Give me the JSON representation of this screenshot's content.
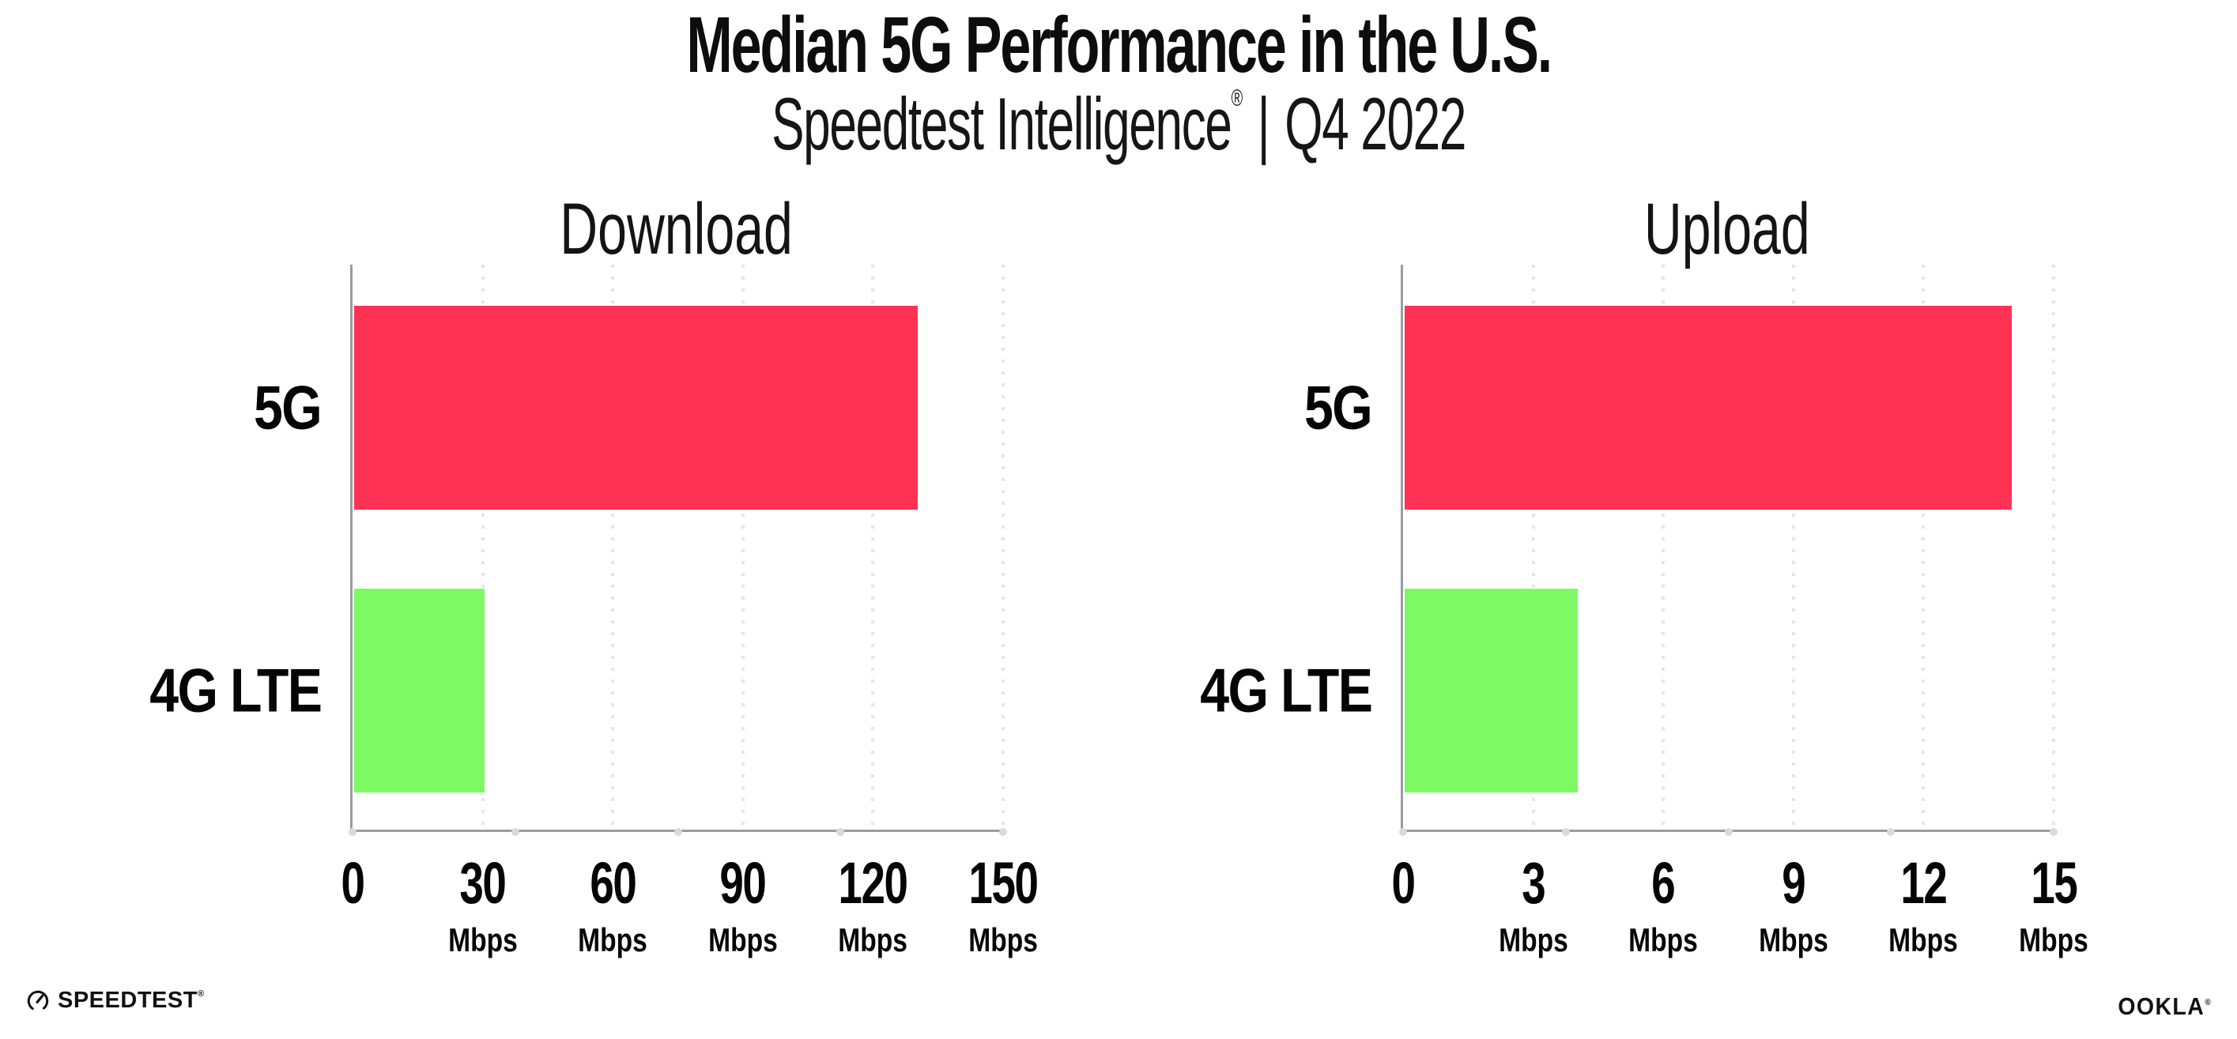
{
  "header": {
    "title": "Median 5G Performance in the U.S.",
    "subtitle": {
      "brand": "Speedtest Intelligence",
      "mark": "®",
      "sep": "|",
      "quarter": "Q4 2022"
    }
  },
  "chart_data": [
    {
      "type": "bar",
      "orientation": "horizontal",
      "title": "Download",
      "categories": [
        "5G",
        "4G LTE"
      ],
      "values": [
        130,
        30
      ],
      "unit": "Mbps",
      "xlabel": "",
      "ylabel": "",
      "xlim": [
        0,
        150
      ],
      "xticks": [
        0,
        30,
        60,
        90,
        120,
        150
      ],
      "bar_colors": [
        "#ff3254",
        "#7dfa63"
      ],
      "grid": "vertical-dotted",
      "legend": "none"
    },
    {
      "type": "bar",
      "orientation": "horizontal",
      "title": "Upload",
      "categories": [
        "5G",
        "4G LTE"
      ],
      "values": [
        14,
        4
      ],
      "unit": "Mbps",
      "xlabel": "",
      "ylabel": "",
      "xlim": [
        0,
        15
      ],
      "xticks": [
        0,
        3,
        6,
        9,
        12,
        15
      ],
      "bar_colors": [
        "#ff3254",
        "#7dfa63"
      ],
      "grid": "vertical-dotted",
      "legend": "none"
    }
  ],
  "footer": {
    "speedtest": "SPEEDTEST",
    "speedtest_mark": "®",
    "ookla": "OOKLA",
    "ookla_mark": "®"
  },
  "colors": {
    "bar_5g": "#ff3254",
    "bar_4g_lte": "#7dfa63",
    "axis": "#9b9ba3",
    "gridline": "#e4e4f0",
    "text": "#0d0d0d"
  }
}
